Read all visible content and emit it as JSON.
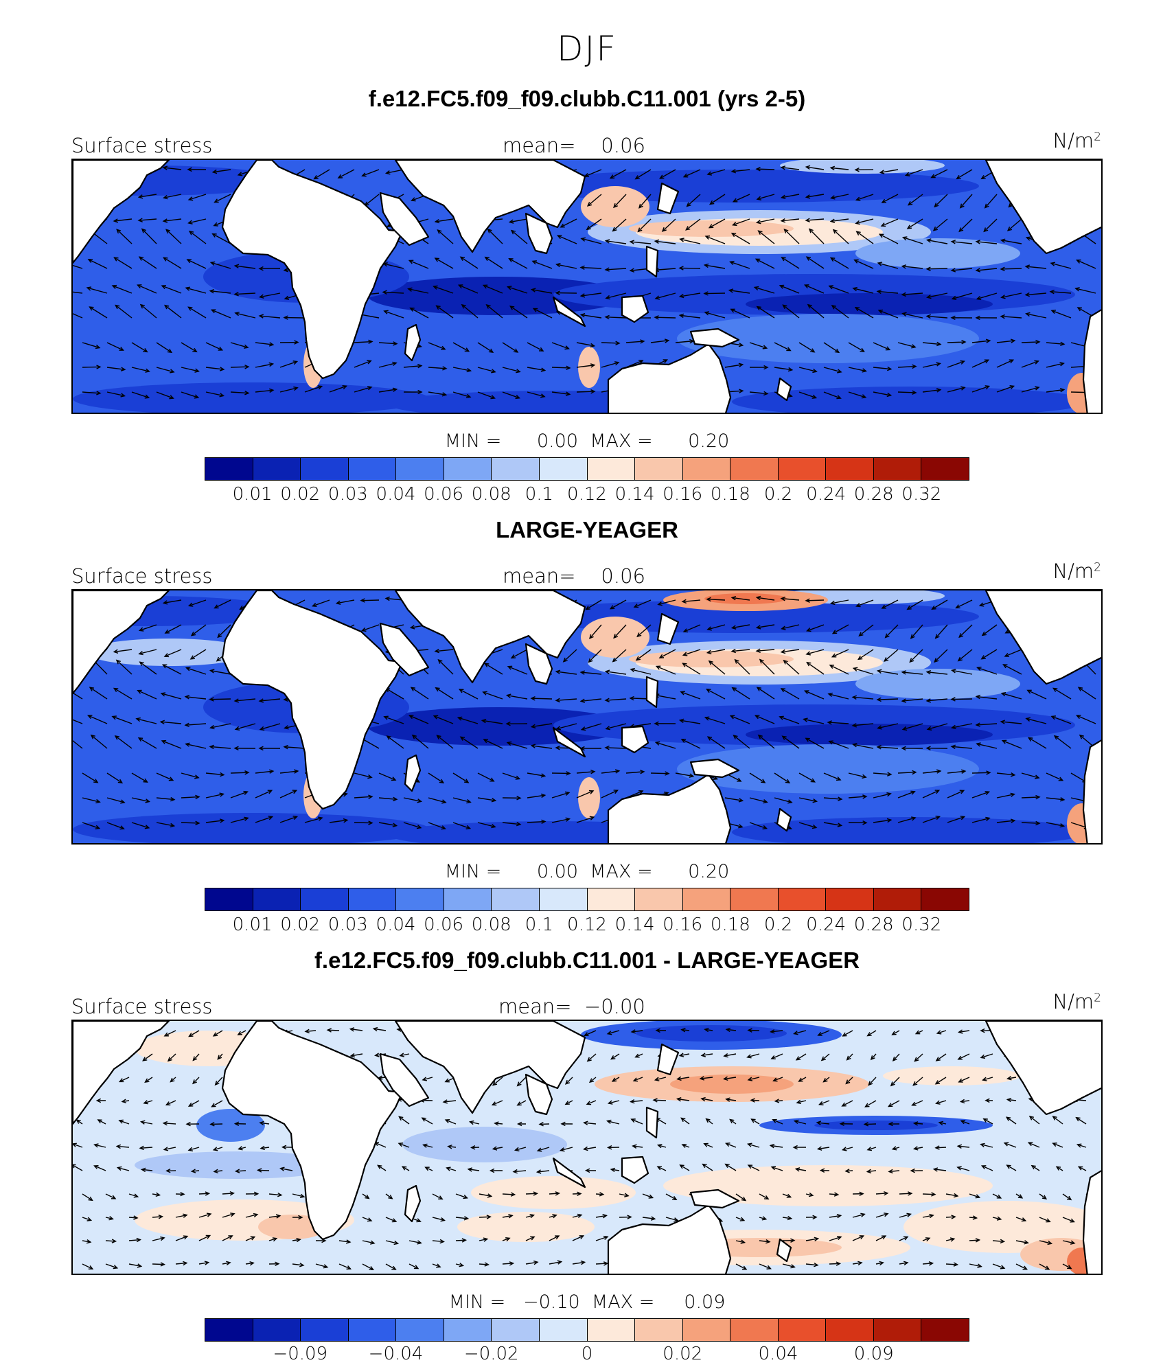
{
  "season": "DJF",
  "colors": {
    "land": "#ffffff",
    "coast": "#000000",
    "palette": [
      "#00078f",
      "#0a22b3",
      "#1a3fd6",
      "#2f5ee9",
      "#4c7ff0",
      "#7ea7f5",
      "#afc8f7",
      "#d8e8fb",
      "#fde9da",
      "#f9c7ac",
      "#f5a27c",
      "#f07850",
      "#e8502c",
      "#d63416",
      "#b01c08",
      "#8a0703"
    ]
  },
  "panels": [
    {
      "title": "f.e12.FC5.f09_f09.clubb.C11.001 (yrs 2-5)",
      "variable": "Surface stress",
      "mean_label": "mean=",
      "mean_value": "0.06",
      "units": "N/m",
      "units_sup": "2",
      "min_label": "MIN =",
      "min_value": "0.00",
      "max_label": "MAX =",
      "max_value": "0.20",
      "colorbar_ticks": [
        "0.01",
        "0.02",
        "0.03",
        "0.04",
        "0.06",
        "0.08",
        "0.1",
        "0.12",
        "0.14",
        "0.16",
        "0.18",
        "0.2",
        "0.24",
        "0.28",
        "0.32"
      ]
    },
    {
      "title": "LARGE-YEAGER",
      "variable": "Surface stress",
      "mean_label": "mean=",
      "mean_value": "0.06",
      "units": "N/m",
      "units_sup": "2",
      "min_label": "MIN =",
      "min_value": "0.00",
      "max_label": "MAX =",
      "max_value": "0.20",
      "colorbar_ticks": [
        "0.01",
        "0.02",
        "0.03",
        "0.04",
        "0.06",
        "0.08",
        "0.1",
        "0.12",
        "0.14",
        "0.16",
        "0.18",
        "0.2",
        "0.24",
        "0.28",
        "0.32"
      ]
    },
    {
      "title": "f.e12.FC5.f09_f09.clubb.C11.001 - LARGE-YEAGER",
      "variable": "Surface stress",
      "mean_label": "mean=",
      "mean_value": "−0.00",
      "units": "N/m",
      "units_sup": "2",
      "min_label": "MIN =",
      "min_value": "−0.10",
      "max_label": "MAX =",
      "max_value": "0.09",
      "colorbar_ticks": [
        "−0.09",
        "−0.04",
        "−0.02",
        "0",
        "0.02",
        "0.04",
        "0.09"
      ]
    }
  ]
}
